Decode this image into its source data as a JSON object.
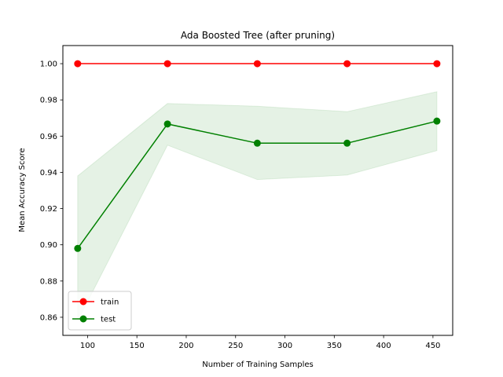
{
  "chart_data": {
    "type": "line",
    "title": "Ada Boosted Tree (after pruning)",
    "xlabel": "Number of Training Samples",
    "ylabel": "Mean Accuracy Score",
    "xlim": [
      75,
      470
    ],
    "ylim": [
      0.85,
      1.01
    ],
    "xticks": [
      100,
      150,
      200,
      250,
      300,
      350,
      400,
      450
    ],
    "yticks": [
      0.86,
      0.88,
      0.9,
      0.92,
      0.94,
      0.96,
      0.98,
      1.0
    ],
    "ytick_labels": [
      "0.86",
      "0.88",
      "0.90",
      "0.92",
      "0.94",
      "0.96",
      "0.98",
      "1.00"
    ],
    "grid": false,
    "legend_position": "lower-left",
    "x": [
      90,
      181,
      272,
      363,
      454
    ],
    "series": [
      {
        "name": "train",
        "color": "#ff0000",
        "values": [
          1.0,
          1.0,
          1.0,
          1.0,
          1.0
        ]
      },
      {
        "name": "test",
        "color": "#008000",
        "values": [
          0.898,
          0.9667,
          0.9561,
          0.9561,
          0.9683
        ],
        "band_lower": [
          0.858,
          0.955,
          0.936,
          0.9385,
          0.952
        ],
        "band_upper": [
          0.938,
          0.978,
          0.9765,
          0.9735,
          0.9845
        ],
        "band_color": "#008000"
      }
    ]
  }
}
